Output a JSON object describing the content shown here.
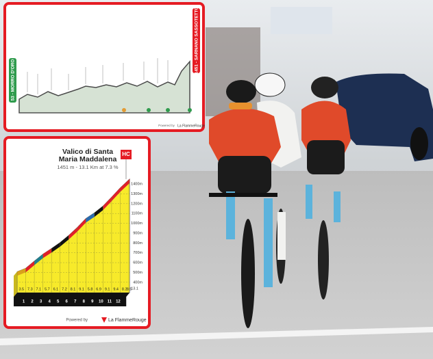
{
  "stage_profile": {
    "start_label": "53 - MORRO D'ORO",
    "finish_label": "1451 - SARNANO SASSOTETTO",
    "powered_by": "Powered by",
    "brand": "La FlammeRouge"
  },
  "chart_data": {
    "type": "area",
    "title": [
      "Valico di Santa",
      "Maria Maddalena"
    ],
    "subtitle": "1451 m - 13.1 Km at 7.3 %",
    "category_tag": "HC",
    "x": [
      0,
      1,
      2,
      3,
      4,
      5,
      6,
      7,
      8,
      9,
      10,
      11,
      12,
      13,
      13.1
    ],
    "values": [
      508,
      543,
      616,
      687,
      744,
      805,
      877,
      958,
      1049,
      1107,
      1176,
      1267,
      1361,
      1443,
      1451
    ],
    "gradients": [
      3.5,
      7.3,
      7.1,
      5.7,
      6.1,
      7.2,
      8.1,
      9.1,
      5.8,
      6.9,
      9.1,
      9.4,
      8.2,
      8.5
    ],
    "segment_colors": [
      "#d9a21b",
      "#e0202a",
      "#1f7f8f",
      "#e0202a",
      "#111111",
      "#111111",
      "#e0202a",
      "#e0202a",
      "#2a6bb0",
      "#111111",
      "#e0202a",
      "#e0202a",
      "#e0202a",
      "#e0202a"
    ],
    "fill_color": "#f7ea2a",
    "xlim": [
      -0.4,
      13.4
    ],
    "xticks": [
      1,
      2,
      3,
      4,
      5,
      6,
      7,
      8,
      9,
      10,
      11,
      12
    ],
    "ylim": [
      350,
      1470
    ],
    "yticks": [
      {
        "value": 400,
        "label": "400m"
      },
      {
        "value": 500,
        "label": "500m"
      },
      {
        "value": 600,
        "label": "600m"
      },
      {
        "value": 700,
        "label": "700m"
      },
      {
        "value": 800,
        "label": "800m"
      },
      {
        "value": 900,
        "label": "900m"
      },
      {
        "value": 1000,
        "label": "1000m"
      },
      {
        "value": 1100,
        "label": "1100m"
      },
      {
        "value": 1200,
        "label": "1200m"
      },
      {
        "value": 1300,
        "label": "1300m"
      },
      {
        "value": 1400,
        "label": "1400m"
      }
    ],
    "grid": true,
    "powered_by": "Powered by",
    "brand": "La FlammeRouge"
  }
}
